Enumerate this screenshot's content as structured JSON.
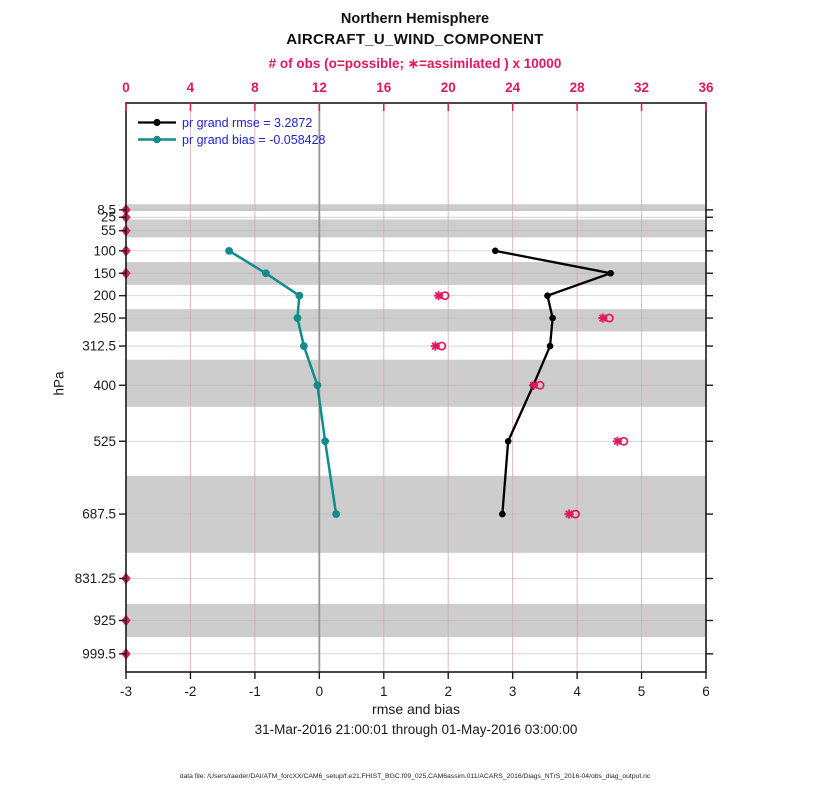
{
  "title": {
    "line1": "Northern Hemisphere",
    "line2": "AIRCRAFT_U_WIND_COMPONENT"
  },
  "top_axis": {
    "label": "# of obs (o=possible; ∗=assimilated ) x 10000",
    "ticks": [
      "0",
      "4",
      "8",
      "12",
      "16",
      "20",
      "24",
      "28",
      "32",
      "36"
    ],
    "tick_values": [
      0,
      4,
      8,
      12,
      16,
      20,
      24,
      28,
      32,
      36
    ]
  },
  "bottom_axis": {
    "label": "rmse and bias",
    "ticks": [
      "-3",
      "-2",
      "-1",
      "0",
      "1",
      "2",
      "3",
      "4",
      "5",
      "6"
    ],
    "tick_values": [
      -3,
      -2,
      -1,
      0,
      1,
      2,
      3,
      4,
      5,
      6
    ]
  },
  "left_axis": {
    "label": "hPa",
    "tick_labels": [
      "8.5",
      "25",
      "55",
      "100",
      "150",
      "200",
      "250",
      "312.5",
      "400",
      "525",
      "687.5",
      "831.25",
      "925",
      "999.5"
    ],
    "tick_values": [
      8.5,
      25,
      55,
      100,
      150,
      200,
      250,
      312.5,
      400,
      525,
      687.5,
      831.25,
      925,
      999.5
    ]
  },
  "legend": {
    "items": [
      {
        "label": "pr grand rmse = 3.2872",
        "series": "rmse"
      },
      {
        "label": "pr grand bias = -0.058428",
        "series": "bias"
      }
    ]
  },
  "subtitle": "31-Mar-2016 21:00:01 through 01-May-2016 03:00:00",
  "footer": "data file: /Users/raeder/DAI/ATM_forcXX/CAM6_setup/f.e21.FHIST_BGC.f09_025.CAM6assim.011/ACARS_2016/Diags_NTrS_2016-04/obs_diag_output.nc",
  "colors": {
    "crimson": "#e2175e",
    "teal": "#118b8b",
    "black": "#000000",
    "legend_text": "#1f1fd0",
    "band_gray": "#cdcdcd",
    "grid_gray": "#b7b7b7",
    "grid_pink": "#d9a4b8",
    "zero_line": "#969696",
    "axis": "#1a1a1a"
  },
  "chart_data": {
    "type": "line",
    "orientation": "vertical-profile",
    "title": "Northern Hemisphere AIRCRAFT_U_WIND_COMPONENT",
    "xlabel": "rmse and bias",
    "ylabel": "hPa",
    "top_xlabel": "# of obs (o=possible; ∗=assimilated ) x 10000",
    "xlim": [
      -3,
      6
    ],
    "top_xlim": [
      0,
      36
    ],
    "ylim_pressure": [
      -230,
      1040
    ],
    "grid": true,
    "legend_position": "top-left-inside",
    "grand_rmse": 3.2872,
    "grand_bias": -0.058428,
    "levels_hpa": [
      100,
      150,
      200,
      250,
      312.5,
      400,
      525,
      687.5
    ],
    "series": [
      {
        "name": "pr grand rmse",
        "color": "#000000",
        "values": [
          2.73,
          4.52,
          3.54,
          3.62,
          3.58,
          3.32,
          2.93,
          2.84
        ]
      },
      {
        "name": "pr grand bias",
        "color": "#118b8b",
        "values": [
          -1.4,
          -0.83,
          -0.31,
          -0.34,
          -0.24,
          -0.03,
          0.09,
          0.26
        ]
      }
    ],
    "obs_counts_x10000": {
      "levels_hpa": [
        200,
        250,
        312.5,
        400,
        525,
        687.5
      ],
      "possible": [
        19.8,
        30.0,
        19.6,
        25.7,
        30.9,
        27.9
      ],
      "assimilated": [
        19.4,
        29.6,
        19.2,
        25.3,
        30.5,
        27.5
      ]
    },
    "zero_obs_levels_hpa": [
      8.5,
      25,
      55,
      100,
      150,
      831.25,
      925,
      999.5
    ],
    "gray_bands_pressure": [
      [
        -4,
        11
      ],
      [
        30,
        70
      ],
      [
        125,
        176
      ],
      [
        230,
        280
      ],
      [
        343,
        448
      ],
      [
        602,
        774
      ],
      [
        888,
        962
      ]
    ]
  }
}
